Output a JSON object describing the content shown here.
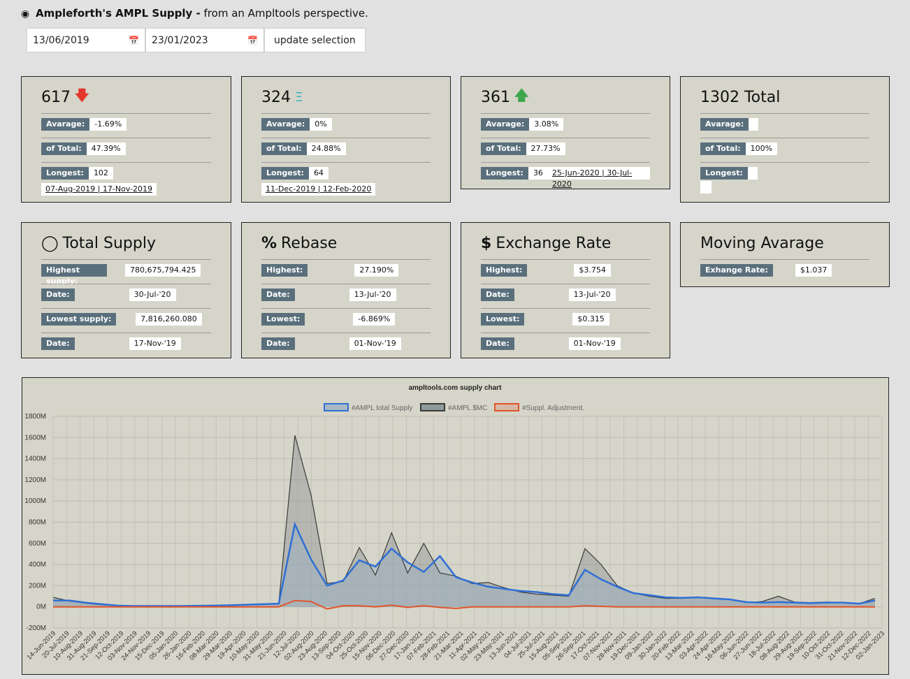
{
  "header": {
    "icon": "tachometer-icon",
    "title": "Ampleforth's AMPL Supply -",
    "subtitle": "from an Ampltools perspective."
  },
  "controls": {
    "start_date": "13/06/2019",
    "end_date": "23/01/2023",
    "update_label": "update selection"
  },
  "stats": [
    {
      "count": "617",
      "indicator": "arrow-down-icon",
      "avg": "-1.69%",
      "of_total": "47.39%",
      "longest": "102",
      "range": "07-Aug-2019 | 17-Nov-2019"
    },
    {
      "count": "324",
      "indicator": "equal-icon",
      "avg": "0%",
      "of_total": "24.88%",
      "longest": "64",
      "range": "11-Dec-2019 | 12-Feb-2020"
    },
    {
      "count": "361",
      "indicator": "arrow-up-icon",
      "avg": "3.08%",
      "of_total": "27.73%",
      "longest": "36",
      "range": "25-Jun-2020 | 30-Jul-2020"
    },
    {
      "count": "1302 Total",
      "avg": "",
      "of_total": "100%",
      "longest": "",
      "range": ""
    }
  ],
  "labels": {
    "avg": "Avarage:",
    "of_total": "of Total:",
    "longest": "Longest:",
    "highest": "Highest:",
    "lowest": "Lowest:",
    "date": "Date:",
    "highest_supply": "Highest supply:",
    "lowest_supply": "Lowest supply:",
    "exchange_rate": "Exhange Rate:"
  },
  "supply": {
    "title": "Total Supply",
    "highest": "780,675,794.425",
    "highest_date": "30-Jul-'20",
    "lowest": "7,816,260.080",
    "lowest_date": "17-Nov-'19"
  },
  "rebase": {
    "title": "Rebase",
    "highest": "27.190%",
    "highest_date": "13-Jul-'20",
    "lowest": "-6.869%",
    "lowest_date": "01-Nov-'19"
  },
  "exchange": {
    "title": "Exchange Rate",
    "highest": "$3.754",
    "highest_date": "13-Jul-'20",
    "lowest": "$0.315",
    "lowest_date": "01-Nov-'19"
  },
  "moving": {
    "title": "Moving Avarage",
    "rate": "$1.037"
  },
  "colors": {
    "supply": "#2f6fd6",
    "mc": "#3a3a3a",
    "adjust": "#e0552b",
    "card": "#d6d5c9",
    "label": "#5a6f7c"
  },
  "chart_data": {
    "type": "area",
    "title": "ampltools.com supply chart",
    "series": [
      {
        "name": "#AMPL total Supply",
        "values": [
          60,
          60,
          40,
          25,
          12,
          8,
          8,
          8,
          8,
          10,
          12,
          15,
          20,
          25,
          30,
          780,
          450,
          200,
          250,
          440,
          380,
          550,
          420,
          330,
          480,
          280,
          230,
          190,
          170,
          150,
          140,
          120,
          110,
          350,
          260,
          190,
          130,
          110,
          90,
          85,
          90,
          80,
          70,
          45,
          40,
          45,
          40,
          35,
          40,
          40,
          30,
          60
        ]
      },
      {
        "name": "#AMPL $MC",
        "values": [
          90,
          55,
          35,
          20,
          10,
          6,
          6,
          6,
          6,
          8,
          10,
          12,
          18,
          22,
          28,
          1620,
          1060,
          220,
          240,
          560,
          300,
          700,
          320,
          600,
          320,
          290,
          220,
          230,
          180,
          140,
          120,
          110,
          100,
          550,
          400,
          200,
          130,
          100,
          80,
          80,
          90,
          80,
          70,
          40,
          50,
          100,
          45,
          40,
          45,
          40,
          30,
          80
        ]
      },
      {
        "name": "#Suppl. Adjustment.",
        "values": [
          0,
          0,
          0,
          0,
          0,
          0,
          0,
          0,
          0,
          0,
          0,
          0,
          0,
          0,
          0,
          60,
          50,
          -20,
          10,
          10,
          0,
          15,
          -5,
          10,
          -5,
          -15,
          0,
          0,
          0,
          0,
          0,
          0,
          0,
          10,
          5,
          0,
          0,
          0,
          0,
          0,
          0,
          0,
          0,
          0,
          0,
          0,
          0,
          0,
          0,
          0,
          0,
          0
        ]
      }
    ],
    "ylim": [
      -200,
      1800
    ],
    "yticks": [
      "-200M",
      "0M",
      "200M",
      "400M",
      "600M",
      "800M",
      "1000M",
      "1200M",
      "1400M",
      "1600M",
      "1800M"
    ],
    "xticks": [
      "14-Jun-2019",
      "20-Jul-2019",
      "10-Aug-2019",
      "31-Aug-2019",
      "21-Sep-2019",
      "12-Oct-2019",
      "03-Nov-2019",
      "24-Nov-2019",
      "15-Dec-2019",
      "05-Jan-2020",
      "26-Jan-2020",
      "16-Feb-2020",
      "08-Mar-2020",
      "29-Mar-2020",
      "19-Apr-2020",
      "10-May-2020",
      "31-May-2020",
      "21-Jun-2020",
      "12-Jul-2020",
      "02-Aug-2020",
      "23-Aug-2020",
      "13-Sep-2020",
      "04-Oct-2020",
      "25-Oct-2020",
      "15-Nov-2020",
      "06-Dec-2020",
      "27-Dec-2020",
      "17-Jan-2021",
      "07-Feb-2021",
      "28-Feb-2021",
      "21-Mar-2021",
      "11-Apr-2021",
      "02-May-2021",
      "23-May-2021",
      "13-Jun-2021",
      "04-Jul-2021",
      "25-Jul-2021",
      "15-Aug-2021",
      "05-Sep-2021",
      "26-Sep-2021",
      "17-Oct-2021",
      "07-Nov-2021",
      "28-Nov-2021",
      "19-Dec-2021",
      "09-Jan-2022",
      "30-Jan-2022",
      "20-Feb-2022",
      "13-Mar-2022",
      "03-Apr-2022",
      "24-Apr-2022",
      "16-May-2022",
      "06-Jun-2022",
      "27-Jun-2022",
      "18-Jul-2022",
      "08-Aug-2022",
      "29-Aug-2022",
      "19-Sep-2022",
      "10-Oct-2022",
      "31-Oct-2022",
      "21-Nov-2022",
      "12-Dec-2022",
      "02-Jan-2023"
    ],
    "grid": true,
    "legend": "top-center"
  }
}
